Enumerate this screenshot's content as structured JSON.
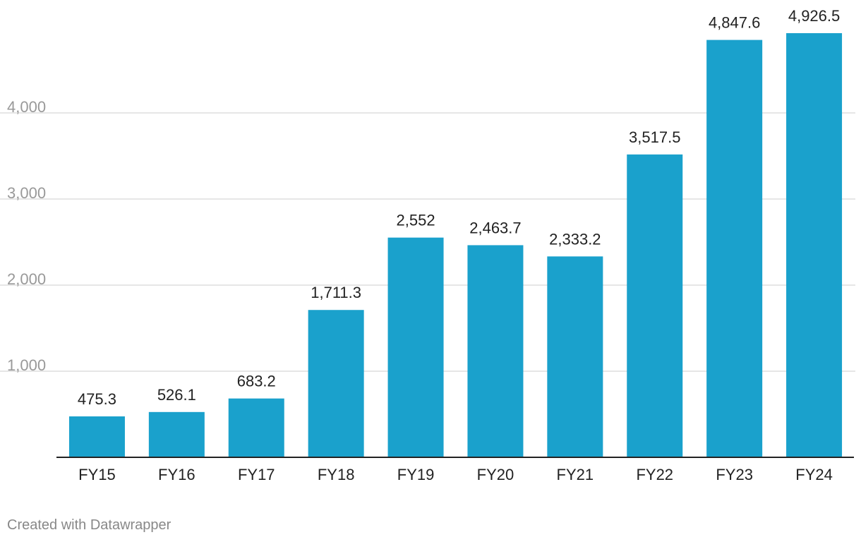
{
  "chart_data": {
    "type": "bar",
    "title": "",
    "xlabel": "",
    "ylabel": "",
    "categories": [
      "FY15",
      "FY16",
      "FY17",
      "FY18",
      "FY19",
      "FY20",
      "FY21",
      "FY22",
      "FY23",
      "FY24"
    ],
    "values": [
      475.3,
      526.1,
      683.2,
      1711.3,
      2552,
      2463.7,
      2333.2,
      3517.5,
      4847.6,
      4926.5
    ],
    "value_labels": [
      "475.3",
      "526.1",
      "683.2",
      "1,711.3",
      "2,552",
      "2,463.7",
      "2,333.2",
      "3,517.5",
      "4,847.6",
      "4,926.5"
    ],
    "y_ticks": [
      1000,
      2000,
      3000,
      4000
    ],
    "y_tick_labels": [
      "1,000",
      "2,000",
      "3,000",
      "4,000"
    ],
    "ylim": [
      0,
      5000
    ],
    "grid": true,
    "bar_color": "#1aa1cc"
  },
  "footer": {
    "credit": "Created with Datawrapper"
  }
}
